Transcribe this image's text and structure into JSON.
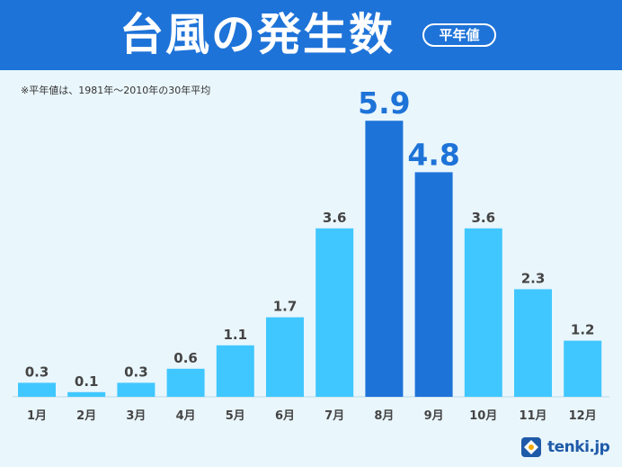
{
  "header": {
    "title": "台風の発生数",
    "badge": "平年値"
  },
  "note": "※平年値は、1981年〜2010年の30年平均",
  "brand": {
    "logo_text": "tenki.jp"
  },
  "colors": {
    "header_bg": "#1e73d8",
    "background": "#e9f6fc",
    "bar": "#41c7ff",
    "bar_highlight": "#1e73d8",
    "label": "#444444",
    "label_highlight": "#1e73d8"
  },
  "chart_data": {
    "type": "bar",
    "categories": [
      "1月",
      "2月",
      "3月",
      "4月",
      "5月",
      "6月",
      "7月",
      "8月",
      "9月",
      "10月",
      "11月",
      "12月"
    ],
    "values": [
      0.3,
      0.1,
      0.3,
      0.6,
      1.1,
      1.7,
      3.6,
      5.9,
      4.8,
      3.6,
      2.3,
      1.2
    ],
    "value_labels": [
      "0.3",
      "0.1",
      "0.3",
      "0.6",
      "1.1",
      "1.7",
      "3.6",
      "5.9",
      "4.8",
      "3.6",
      "2.3",
      "1.2"
    ],
    "highlighted": [
      7,
      8
    ],
    "ylim": [
      0,
      6.0
    ],
    "grid": false,
    "title": "",
    "xlabel": "",
    "ylabel": ""
  }
}
